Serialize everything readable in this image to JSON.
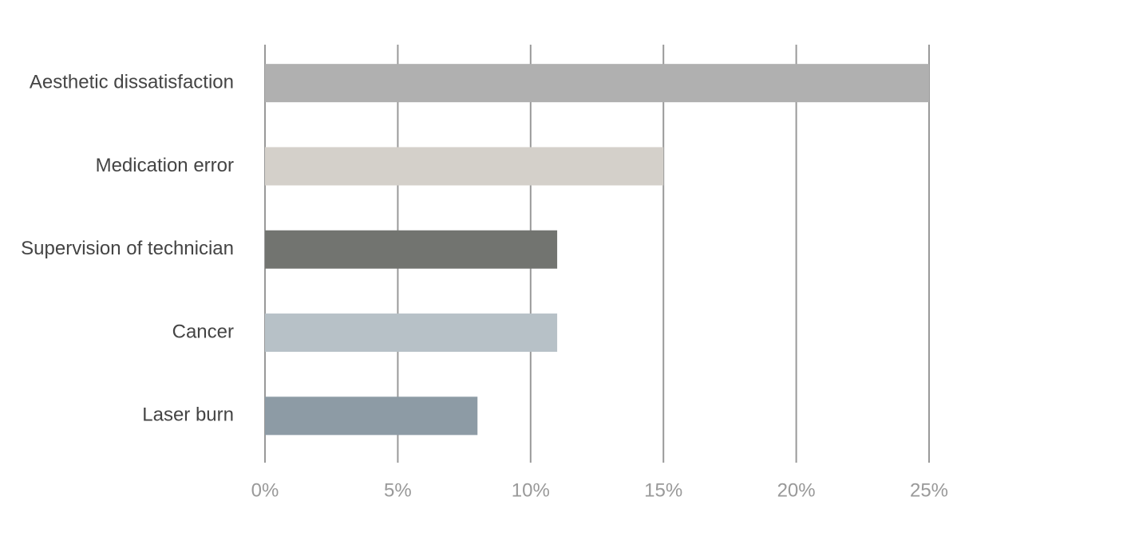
{
  "chart_data": {
    "type": "bar",
    "orientation": "horizontal",
    "categories": [
      "Aesthetic dissatisfaction",
      "Medication error",
      "Supervision of technician",
      "Cancer",
      "Laser burn"
    ],
    "values": [
      25,
      15,
      11,
      11,
      8
    ],
    "colors": [
      "#b0b0b0",
      "#d4d0ca",
      "#727470",
      "#b7c1c7",
      "#8d9ba5"
    ],
    "xlim": [
      0,
      25
    ],
    "xticks": [
      {
        "value": 0,
        "label": "0%"
      },
      {
        "value": 5,
        "label": "5%"
      },
      {
        "value": 10,
        "label": "10%"
      },
      {
        "value": 15,
        "label": "15%"
      },
      {
        "value": 20,
        "label": "20%"
      },
      {
        "value": 25,
        "label": "25%"
      }
    ],
    "grid": true
  }
}
